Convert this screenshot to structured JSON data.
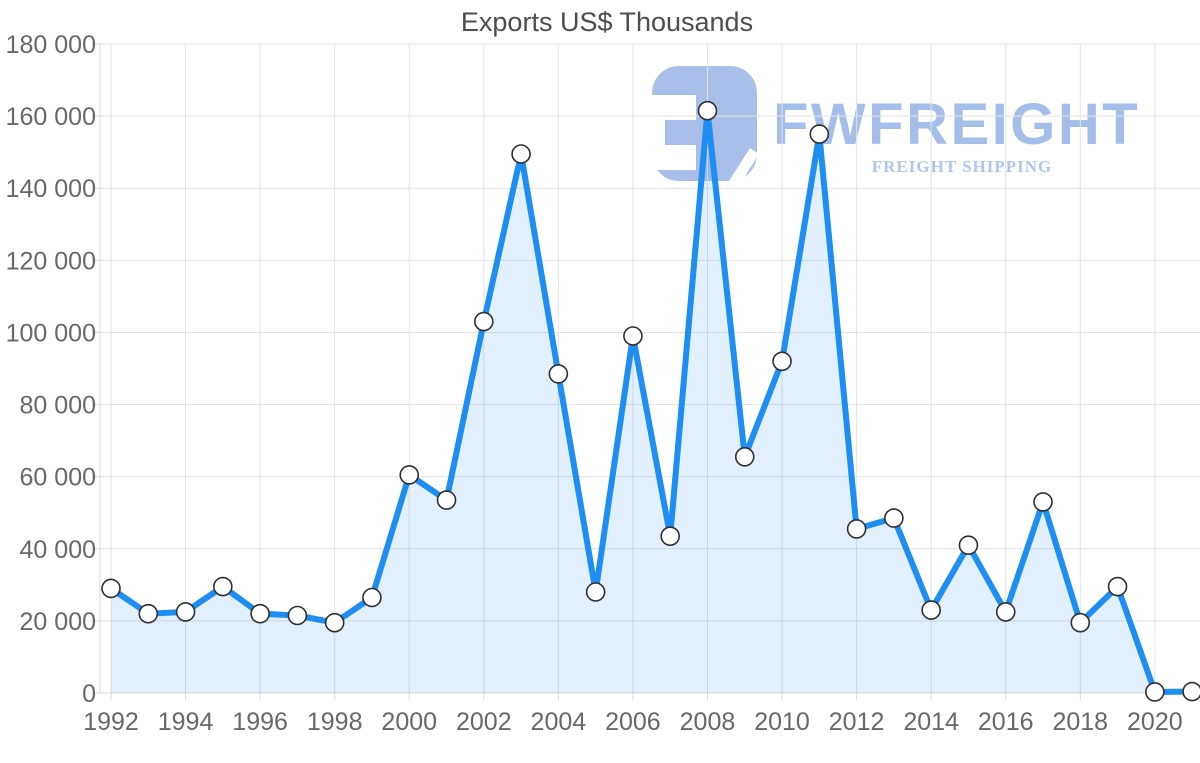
{
  "watermark": {
    "brand": "FWFREIGHT",
    "tagline": "FREIGHT SHIPPING"
  },
  "colors": {
    "line": "#1e8ef2",
    "fill": "rgba(30,142,242,0.13)",
    "marker_fill": "#ffffff",
    "marker_stroke": "#2f2f2f",
    "grid": "#e3e3e3",
    "axis_line": "#d9d9d9",
    "axis_label": "#686868",
    "title": "#4d4d4d",
    "watermark_mark": "#a9bfe9",
    "watermark_brand": "#a5bde9",
    "watermark_tagline": "#b0c6ee",
    "background": "#ffffff"
  },
  "chart_data": {
    "type": "area",
    "title": "Exports US$ Thousands",
    "xlabel": "",
    "ylabel": "",
    "x": [
      1992,
      1993,
      1994,
      1995,
      1996,
      1997,
      1998,
      1999,
      2000,
      2001,
      2002,
      2003,
      2004,
      2005,
      2006,
      2007,
      2008,
      2009,
      2010,
      2011,
      2012,
      2013,
      2014,
      2015,
      2016,
      2017,
      2018,
      2019,
      2020,
      2021
    ],
    "values": [
      29000,
      22000,
      22500,
      29500,
      22000,
      21500,
      19500,
      26500,
      60500,
      53500,
      103000,
      149500,
      88500,
      28000,
      99000,
      43500,
      161500,
      65500,
      92000,
      155000,
      45500,
      48500,
      23000,
      41000,
      22500,
      53000,
      19500,
      29500,
      300,
      400
    ],
    "ylim": [
      0,
      180000
    ],
    "ytick_step": 20000,
    "yticks": [
      "0",
      "20 000",
      "40 000",
      "60 000",
      "80 000",
      "100 000",
      "120 000",
      "140 000",
      "160 000",
      "180 000"
    ],
    "xticks": [
      "1992",
      "1994",
      "1996",
      "1998",
      "2000",
      "2002",
      "2004",
      "2006",
      "2008",
      "2010",
      "2012",
      "2014",
      "2016",
      "2018",
      "2020"
    ],
    "xtick_every_years": 2,
    "grid": true,
    "legend_position": "none",
    "marker": "circle-open"
  }
}
